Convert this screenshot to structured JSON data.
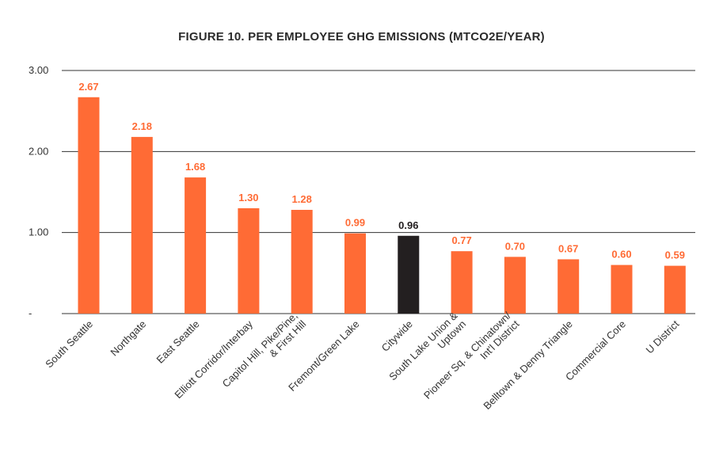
{
  "chart_data": {
    "type": "bar",
    "title": "FIGURE 10. PER EMPLOYEE GHG EMISSIONS (MTCO2E/YEAR)",
    "categories": [
      [
        "South Seattle"
      ],
      [
        "Northgate"
      ],
      [
        "East Seattle"
      ],
      [
        "Elliott Corridor/Interbay"
      ],
      [
        "Capitol Hill, Pike/Pine,",
        "& First Hill"
      ],
      [
        "Fremont/Green Lake"
      ],
      [
        "Citywide"
      ],
      [
        "South Lake Union &",
        "Uptown"
      ],
      [
        "Pioneer Sq. & Chinatown/",
        "Int'l District"
      ],
      [
        "Belltown & Denny Triangle"
      ],
      [
        "Commercial Core"
      ],
      [
        "U District"
      ]
    ],
    "values": [
      2.67,
      2.18,
      1.68,
      1.3,
      1.28,
      0.99,
      0.96,
      0.77,
      0.7,
      0.67,
      0.6,
      0.59
    ],
    "value_labels": [
      "2.67",
      "2.18",
      "1.68",
      "1.30",
      "1.28",
      "0.99",
      "0.96",
      "0.77",
      "0.70",
      "0.67",
      "0.60",
      "0.59"
    ],
    "highlight_category": "Citywide",
    "ylim": [
      0,
      3
    ],
    "yticks": [
      {
        "value": 3,
        "label": "3.00"
      },
      {
        "value": 2,
        "label": "2.00"
      },
      {
        "value": 1,
        "label": "1.00"
      },
      {
        "value": 0,
        "label": "-"
      }
    ],
    "grid": true,
    "legend": "none",
    "colors": {
      "bar": "#ff6b35",
      "highlight": "#231f20",
      "label": "#ff6b35",
      "highlight_label": "#231f20",
      "grid": "#333333"
    }
  }
}
